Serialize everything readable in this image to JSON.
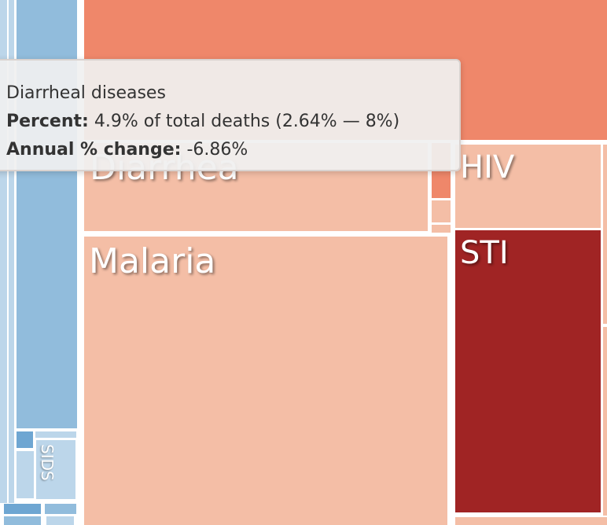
{
  "chart_data": {
    "type": "treemap",
    "title": "",
    "cells": [
      {
        "label": "",
        "color": "#ef876a"
      },
      {
        "label": "Diarrhea",
        "color": "#f4bea6",
        "full_name": "Diarrheal diseases",
        "percent": "4.9%",
        "percent_range": "(2.64% — 8%)",
        "annual_change": "-6.86%"
      },
      {
        "label": "Malaria",
        "color": "#f4bea6"
      },
      {
        "label": "HIV",
        "color": "#f4bea6"
      },
      {
        "label": "STI",
        "color": "#a02424"
      },
      {
        "label": "SIDS",
        "color": "#bcd6ea"
      },
      {
        "label": "",
        "color": "#91bcdc"
      }
    ]
  },
  "tooltip": {
    "title": "Diarrheal diseases",
    "percent_label": "Percent:",
    "percent_text": "4.9% of total deaths (2.64% — 8%)",
    "change_label": "Annual % change:",
    "change_text": "-6.86%"
  }
}
